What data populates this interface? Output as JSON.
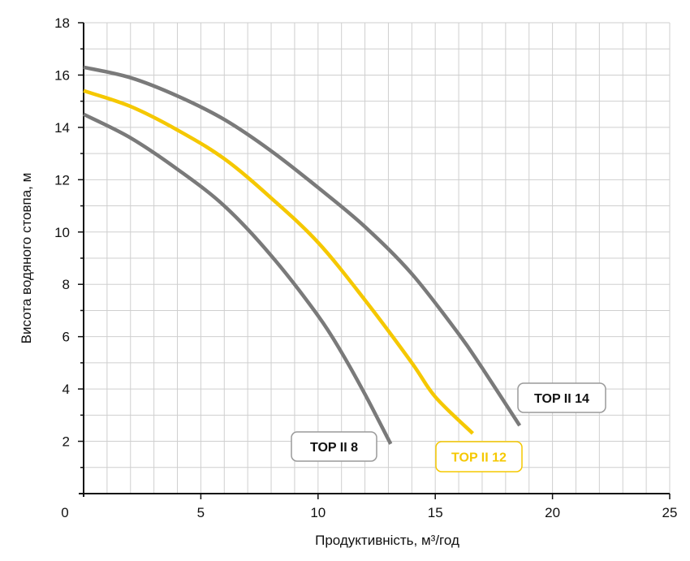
{
  "chart_data": {
    "type": "line",
    "title": "",
    "xlabel": "Продуктивність, м³/год",
    "ylabel": "Висота водяного стовпа, м",
    "xlim": [
      0,
      25
    ],
    "ylim": [
      0,
      18
    ],
    "x_ticks": [
      "0",
      "5",
      "10",
      "15",
      "20",
      "25"
    ],
    "x_tick_values": [
      0,
      5,
      10,
      15,
      20,
      25
    ],
    "y_ticks": [
      "2",
      "4",
      "6",
      "8",
      "10",
      "12",
      "14",
      "16",
      "18"
    ],
    "y_tick_values": [
      2,
      4,
      6,
      8,
      10,
      12,
      14,
      16,
      18
    ],
    "grid": true,
    "series": [
      {
        "name": "TOP II 8",
        "color": "#7a7a7a",
        "label_color": "#111111",
        "x": [
          0,
          2,
          4,
          6,
          8,
          10,
          11,
          12,
          13.1
        ],
        "y": [
          14.5,
          13.6,
          12.4,
          11.0,
          9.1,
          6.8,
          5.4,
          3.8,
          1.9
        ]
      },
      {
        "name": "TOP II 12",
        "color": "#f5c800",
        "label_color": "#f5c800",
        "x": [
          0,
          2,
          4,
          6,
          8,
          10,
          12,
          14,
          15,
          16.6
        ],
        "y": [
          15.4,
          14.8,
          13.9,
          12.8,
          11.3,
          9.6,
          7.4,
          5.0,
          3.7,
          2.3
        ]
      },
      {
        "name": "TOP II 14",
        "color": "#7a7a7a",
        "label_color": "#111111",
        "x": [
          0,
          2,
          4,
          6,
          8,
          10,
          12,
          14,
          16,
          17,
          18.6
        ],
        "y": [
          16.3,
          15.9,
          15.2,
          14.3,
          13.1,
          11.7,
          10.2,
          8.4,
          6.1,
          4.8,
          2.6
        ]
      }
    ]
  }
}
